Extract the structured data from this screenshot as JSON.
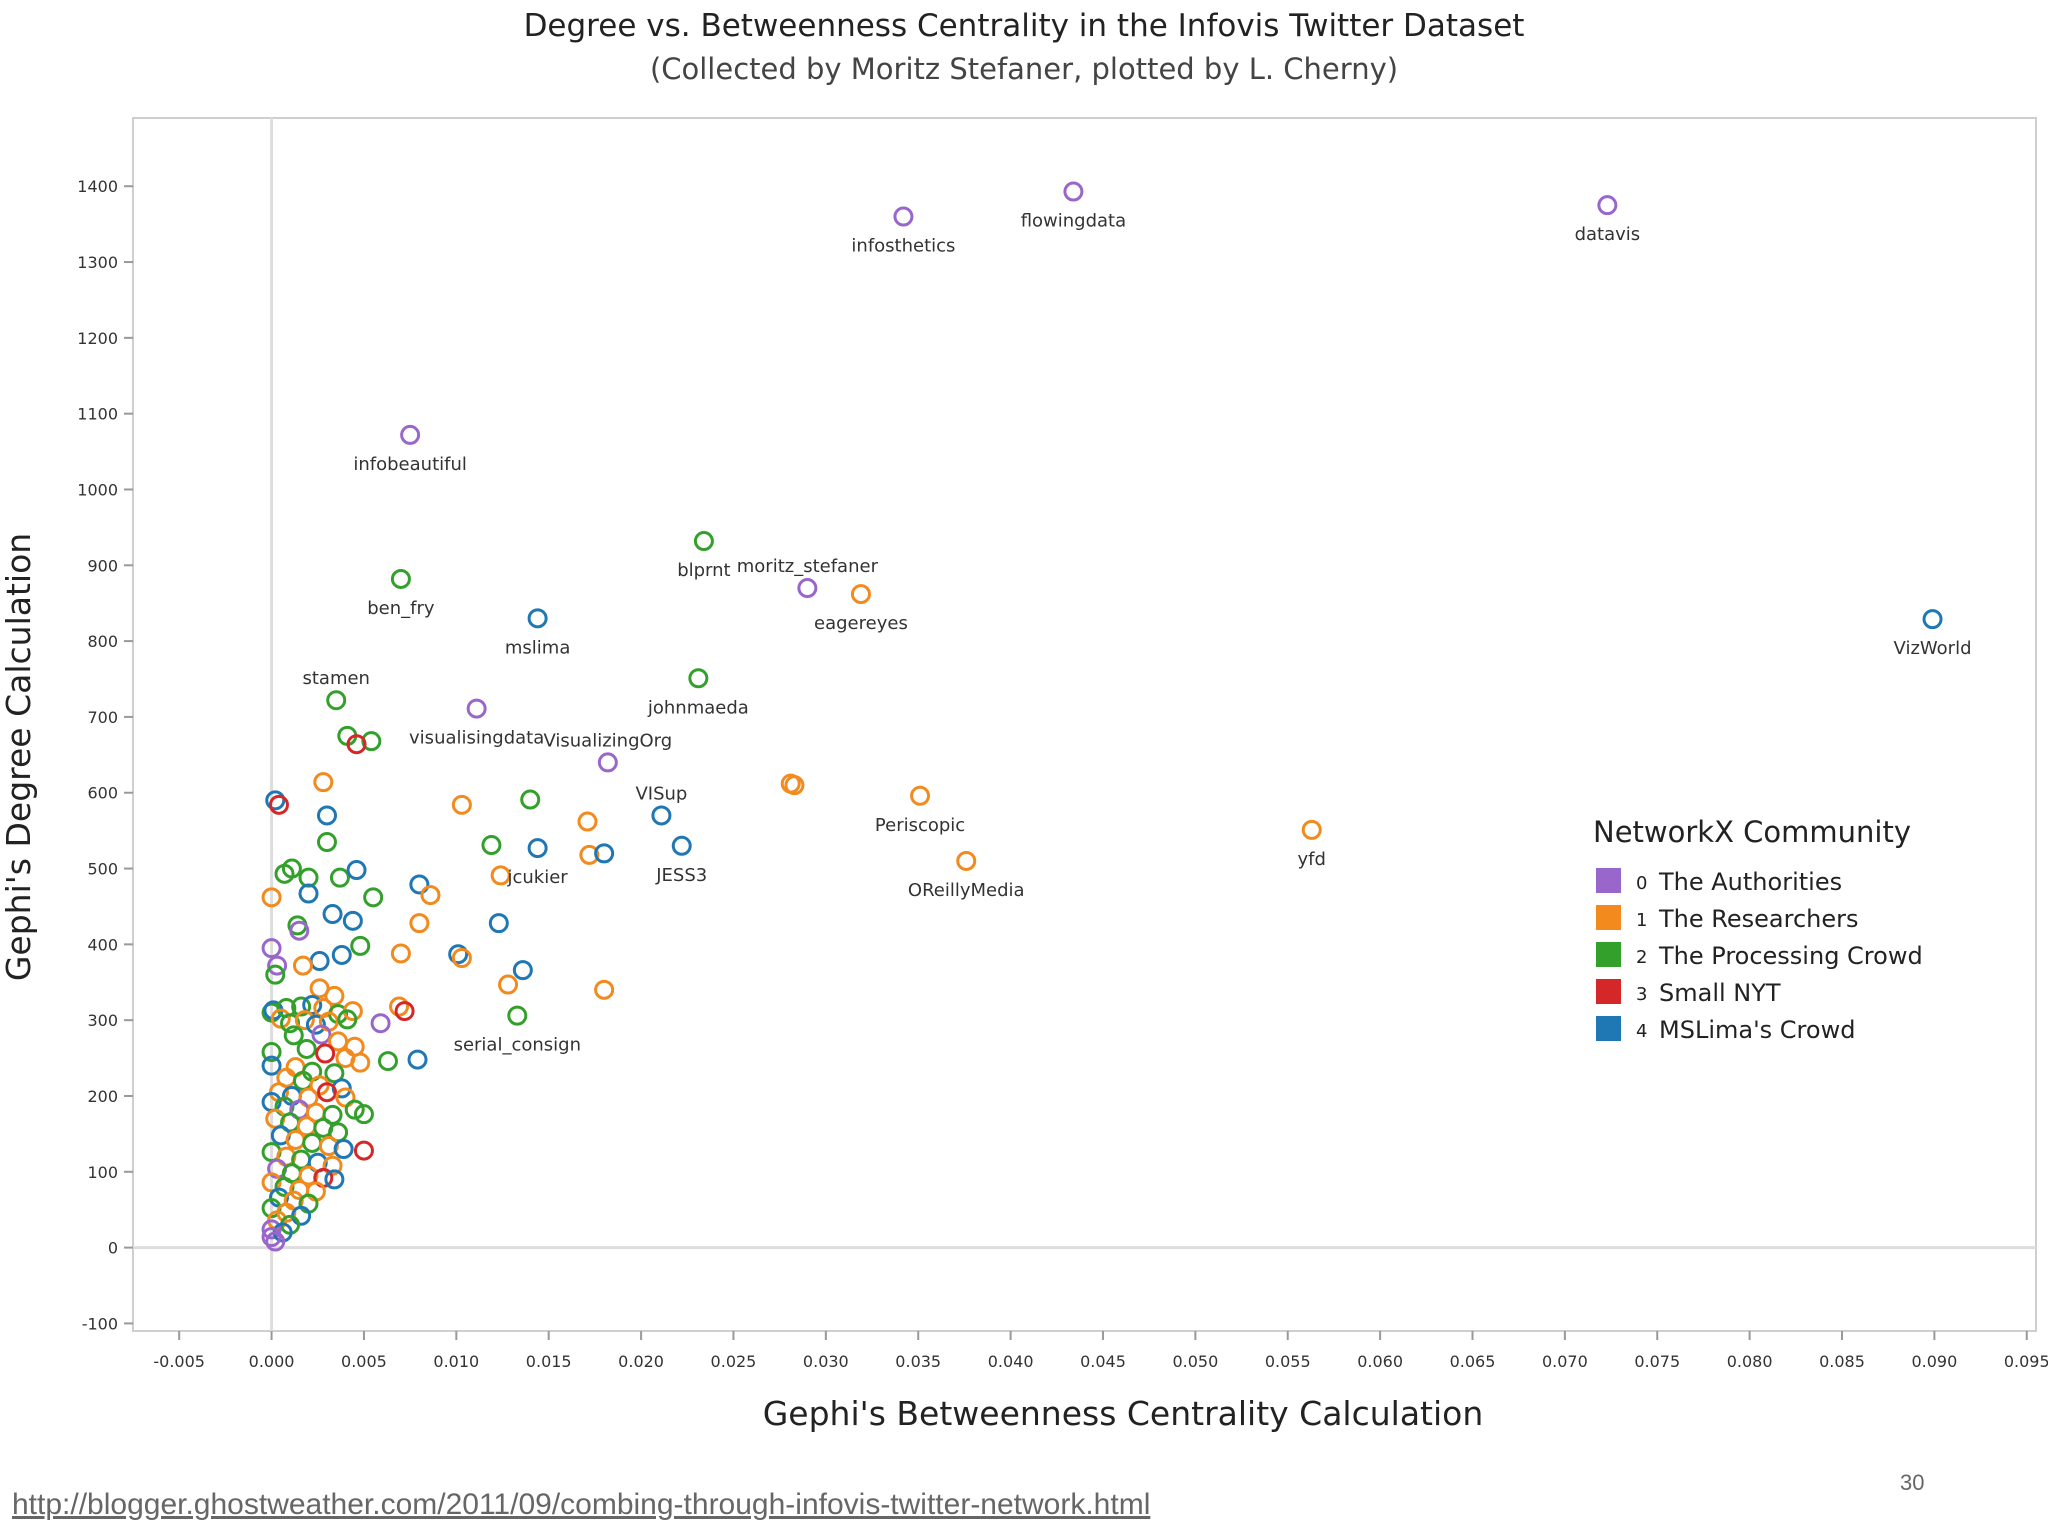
{
  "slide": {
    "page_number": "30",
    "source_url": "http://blogger.ghostweather.com/2011/09/combing-through-infovis-twitter-network.html"
  },
  "chart_data": {
    "type": "scatter",
    "title": "Degree vs. Betweenness Centrality in the Infovis Twitter Dataset",
    "subtitle": "(Collected by Moritz Stefaner, plotted by L. Cherny)",
    "xlabel": "Gephi's Betweenness Centrality Calculation",
    "ylabel": "Gephi's Degree Calculation",
    "xlim": [
      -0.0075,
      0.0955
    ],
    "ylim": [
      -110,
      1490
    ],
    "x_ticks": [
      -0.005,
      0.0,
      0.005,
      0.01,
      0.015,
      0.02,
      0.025,
      0.03,
      0.035,
      0.04,
      0.045,
      0.05,
      0.055,
      0.06,
      0.065,
      0.07,
      0.075,
      0.08,
      0.085,
      0.09,
      0.095
    ],
    "x_tick_labels": [
      "-0.005",
      "0.000",
      "0.005",
      "0.010",
      "0.015",
      "0.020",
      "0.025",
      "0.030",
      "0.035",
      "0.040",
      "0.045",
      "0.050",
      "0.055",
      "0.060",
      "0.065",
      "0.070",
      "0.075",
      "0.080",
      "0.085",
      "0.090",
      "0.095"
    ],
    "y_ticks": [
      -100,
      0,
      100,
      200,
      300,
      400,
      500,
      600,
      700,
      800,
      900,
      1000,
      1100,
      1200,
      1300,
      1400
    ],
    "y_tick_labels": [
      "-100",
      "0",
      "100",
      "200",
      "300",
      "400",
      "500",
      "600",
      "700",
      "800",
      "900",
      "1000",
      "1100",
      "1200",
      "1300",
      "1400"
    ],
    "grid": false,
    "reference_lines": {
      "x": 0,
      "y": 0
    },
    "marker": "open-circle",
    "legend": {
      "title": "NetworkX Community",
      "placement": "right",
      "entries": [
        {
          "code": "0",
          "name": "The Authorities",
          "color": "#9966cc"
        },
        {
          "code": "1",
          "name": "The Researchers",
          "color": "#f28a1e"
        },
        {
          "code": "2",
          "name": "The Processing Crowd",
          "color": "#33a02c"
        },
        {
          "code": "3",
          "name": "Small NYT",
          "color": "#d62728"
        },
        {
          "code": "4",
          "name": "MSLima's Crowd",
          "color": "#1f77b4"
        }
      ]
    },
    "labeled_points": [
      {
        "label": "infosthetics",
        "x": 0.0342,
        "y": 1360,
        "group": 0,
        "label_pos": "below"
      },
      {
        "label": "flowingdata",
        "x": 0.0434,
        "y": 1393,
        "group": 0,
        "label_pos": "below"
      },
      {
        "label": "datavis",
        "x": 0.0723,
        "y": 1375,
        "group": 0,
        "label_pos": "below"
      },
      {
        "label": "infobeautiful",
        "x": 0.0075,
        "y": 1072,
        "group": 0,
        "label_pos": "below"
      },
      {
        "label": "blprnt",
        "x": 0.0234,
        "y": 932,
        "group": 2,
        "label_pos": "below"
      },
      {
        "label": "moritz_stefaner",
        "x": 0.029,
        "y": 870,
        "group": 0,
        "label_pos": "above"
      },
      {
        "label": "eagereyes",
        "x": 0.0319,
        "y": 862,
        "group": 1,
        "label_pos": "below"
      },
      {
        "label": "ben_fry",
        "x": 0.007,
        "y": 882,
        "group": 2,
        "label_pos": "below"
      },
      {
        "label": "mslima",
        "x": 0.0144,
        "y": 830,
        "group": 4,
        "label_pos": "below"
      },
      {
        "label": "VizWorld",
        "x": 0.0899,
        "y": 829,
        "group": 4,
        "label_pos": "below"
      },
      {
        "label": "stamen",
        "x": 0.0035,
        "y": 722,
        "group": 2,
        "label_pos": "above"
      },
      {
        "label": "johnmaeda",
        "x": 0.0231,
        "y": 751,
        "group": 2,
        "label_pos": "below"
      },
      {
        "label": "visualisingdata",
        "x": 0.0111,
        "y": 711,
        "group": 0,
        "label_pos": "below"
      },
      {
        "label": "VisualizingOrg",
        "x": 0.0182,
        "y": 640,
        "group": 0,
        "label_pos": "above"
      },
      {
        "label": "VISup",
        "x": 0.0211,
        "y": 570,
        "group": 4,
        "label_pos": "above"
      },
      {
        "label": "Periscopic",
        "x": 0.0351,
        "y": 596,
        "group": 1,
        "label_pos": "below"
      },
      {
        "label": "yfd",
        "x": 0.0563,
        "y": 551,
        "group": 1,
        "label_pos": "below"
      },
      {
        "label": "JESS3",
        "x": 0.0222,
        "y": 530,
        "group": 4,
        "label_pos": "below"
      },
      {
        "label": "jcukier",
        "x": 0.0144,
        "y": 527,
        "group": 4,
        "label_pos": "below"
      },
      {
        "label": "OReillyMedia",
        "x": 0.0376,
        "y": 510,
        "group": 1,
        "label_pos": "below"
      },
      {
        "label": "serial_consign",
        "x": 0.0133,
        "y": 306,
        "group": 2,
        "label_pos": "below"
      }
    ],
    "points": [
      {
        "x": 0.0281,
        "y": 612,
        "group": 1
      },
      {
        "x": 0.0283,
        "y": 610,
        "group": 1
      },
      {
        "x": 0.0041,
        "y": 675,
        "group": 2
      },
      {
        "x": 0.0054,
        "y": 668,
        "group": 2
      },
      {
        "x": 0.0046,
        "y": 664,
        "group": 3
      },
      {
        "x": 0.0028,
        "y": 614,
        "group": 1
      },
      {
        "x": 0.0002,
        "y": 590,
        "group": 4
      },
      {
        "x": 0.0004,
        "y": 584,
        "group": 3
      },
      {
        "x": 0.003,
        "y": 570,
        "group": 4
      },
      {
        "x": 0.0103,
        "y": 584,
        "group": 1
      },
      {
        "x": 0.014,
        "y": 591,
        "group": 2
      },
      {
        "x": 0.0171,
        "y": 562,
        "group": 1
      },
      {
        "x": 0.0119,
        "y": 531,
        "group": 2
      },
      {
        "x": 0.003,
        "y": 535,
        "group": 2
      },
      {
        "x": 0.0172,
        "y": 518,
        "group": 1
      },
      {
        "x": 0.018,
        "y": 520,
        "group": 4
      },
      {
        "x": 0.0124,
        "y": 491,
        "group": 1
      },
      {
        "x": 0.0011,
        "y": 500,
        "group": 2
      },
      {
        "x": 0.0007,
        "y": 493,
        "group": 2
      },
      {
        "x": 0.002,
        "y": 488,
        "group": 2
      },
      {
        "x": 0.0037,
        "y": 488,
        "group": 2
      },
      {
        "x": 0.0046,
        "y": 498,
        "group": 4
      },
      {
        "x": 0.008,
        "y": 479,
        "group": 4
      },
      {
        "x": 0.0086,
        "y": 465,
        "group": 1
      },
      {
        "x": 0.0,
        "y": 462,
        "group": 1
      },
      {
        "x": 0.002,
        "y": 467,
        "group": 4
      },
      {
        "x": 0.0055,
        "y": 462,
        "group": 2
      },
      {
        "x": 0.0033,
        "y": 440,
        "group": 4
      },
      {
        "x": 0.0044,
        "y": 431,
        "group": 4
      },
      {
        "x": 0.0014,
        "y": 425,
        "group": 2
      },
      {
        "x": 0.0015,
        "y": 418,
        "group": 0
      },
      {
        "x": 0.008,
        "y": 428,
        "group": 1
      },
      {
        "x": 0.0123,
        "y": 428,
        "group": 4
      },
      {
        "x": 0.0,
        "y": 395,
        "group": 0
      },
      {
        "x": 0.0048,
        "y": 398,
        "group": 2
      },
      {
        "x": 0.007,
        "y": 388,
        "group": 1
      },
      {
        "x": 0.0101,
        "y": 387,
        "group": 4
      },
      {
        "x": 0.0103,
        "y": 382,
        "group": 1
      },
      {
        "x": 0.0038,
        "y": 386,
        "group": 4
      },
      {
        "x": 0.0026,
        "y": 378,
        "group": 4
      },
      {
        "x": 0.0017,
        "y": 372,
        "group": 1
      },
      {
        "x": 0.0003,
        "y": 372,
        "group": 0
      },
      {
        "x": 0.0002,
        "y": 360,
        "group": 2
      },
      {
        "x": 0.0136,
        "y": 366,
        "group": 4
      },
      {
        "x": 0.0128,
        "y": 347,
        "group": 1
      },
      {
        "x": 0.018,
        "y": 340,
        "group": 1
      },
      {
        "x": 0.0026,
        "y": 342,
        "group": 1
      },
      {
        "x": 0.0034,
        "y": 332,
        "group": 1
      },
      {
        "x": 0.0069,
        "y": 318,
        "group": 1
      },
      {
        "x": 0.0072,
        "y": 312,
        "group": 3
      },
      {
        "x": 0.0,
        "y": 310,
        "group": 2
      },
      {
        "x": 0.0001,
        "y": 313,
        "group": 4
      },
      {
        "x": 0.0008,
        "y": 316,
        "group": 2
      },
      {
        "x": 0.0016,
        "y": 318,
        "group": 2
      },
      {
        "x": 0.0022,
        "y": 320,
        "group": 4
      },
      {
        "x": 0.0028,
        "y": 316,
        "group": 1
      },
      {
        "x": 0.0036,
        "y": 308,
        "group": 2
      },
      {
        "x": 0.0044,
        "y": 312,
        "group": 1
      },
      {
        "x": 0.0059,
        "y": 296,
        "group": 0
      },
      {
        "x": 0.0005,
        "y": 302,
        "group": 1
      },
      {
        "x": 0.001,
        "y": 296,
        "group": 2
      },
      {
        "x": 0.0018,
        "y": 300,
        "group": 1
      },
      {
        "x": 0.0024,
        "y": 294,
        "group": 4
      },
      {
        "x": 0.0031,
        "y": 298,
        "group": 1
      },
      {
        "x": 0.0041,
        "y": 301,
        "group": 2
      },
      {
        "x": 0.0012,
        "y": 280,
        "group": 2
      },
      {
        "x": 0.0027,
        "y": 281,
        "group": 0
      },
      {
        "x": 0.0036,
        "y": 272,
        "group": 1
      },
      {
        "x": 0.0045,
        "y": 265,
        "group": 1
      },
      {
        "x": 0.0019,
        "y": 262,
        "group": 2
      },
      {
        "x": 0.0,
        "y": 258,
        "group": 2
      },
      {
        "x": 0.0029,
        "y": 256,
        "group": 3
      },
      {
        "x": 0.004,
        "y": 250,
        "group": 1
      },
      {
        "x": 0.0048,
        "y": 244,
        "group": 1
      },
      {
        "x": 0.0063,
        "y": 246,
        "group": 2
      },
      {
        "x": 0.0079,
        "y": 248,
        "group": 4
      },
      {
        "x": 0.0,
        "y": 240,
        "group": 4
      },
      {
        "x": 0.0013,
        "y": 238,
        "group": 1
      },
      {
        "x": 0.0022,
        "y": 232,
        "group": 2
      },
      {
        "x": 0.0034,
        "y": 230,
        "group": 2
      },
      {
        "x": 0.0008,
        "y": 224,
        "group": 1
      },
      {
        "x": 0.0017,
        "y": 220,
        "group": 2
      },
      {
        "x": 0.0026,
        "y": 214,
        "group": 1
      },
      {
        "x": 0.0038,
        "y": 210,
        "group": 4
      },
      {
        "x": 0.0004,
        "y": 205,
        "group": 1
      },
      {
        "x": 0.0011,
        "y": 200,
        "group": 4
      },
      {
        "x": 0.002,
        "y": 198,
        "group": 1
      },
      {
        "x": 0.003,
        "y": 205,
        "group": 3
      },
      {
        "x": 0.004,
        "y": 198,
        "group": 1
      },
      {
        "x": 0.0,
        "y": 192,
        "group": 4
      },
      {
        "x": 0.0007,
        "y": 186,
        "group": 2
      },
      {
        "x": 0.0015,
        "y": 182,
        "group": 0
      },
      {
        "x": 0.0024,
        "y": 178,
        "group": 1
      },
      {
        "x": 0.0033,
        "y": 175,
        "group": 2
      },
      {
        "x": 0.0045,
        "y": 182,
        "group": 2
      },
      {
        "x": 0.005,
        "y": 176,
        "group": 2
      },
      {
        "x": 0.0002,
        "y": 170,
        "group": 1
      },
      {
        "x": 0.001,
        "y": 165,
        "group": 2
      },
      {
        "x": 0.0019,
        "y": 160,
        "group": 1
      },
      {
        "x": 0.0028,
        "y": 158,
        "group": 2
      },
      {
        "x": 0.0036,
        "y": 152,
        "group": 2
      },
      {
        "x": 0.0005,
        "y": 148,
        "group": 4
      },
      {
        "x": 0.0013,
        "y": 142,
        "group": 1
      },
      {
        "x": 0.0022,
        "y": 138,
        "group": 2
      },
      {
        "x": 0.0031,
        "y": 134,
        "group": 1
      },
      {
        "x": 0.0039,
        "y": 130,
        "group": 4
      },
      {
        "x": 0.005,
        "y": 128,
        "group": 3
      },
      {
        "x": 0.0,
        "y": 126,
        "group": 2
      },
      {
        "x": 0.0008,
        "y": 120,
        "group": 1
      },
      {
        "x": 0.0016,
        "y": 116,
        "group": 2
      },
      {
        "x": 0.0025,
        "y": 112,
        "group": 4
      },
      {
        "x": 0.0033,
        "y": 108,
        "group": 1
      },
      {
        "x": 0.0003,
        "y": 104,
        "group": 0
      },
      {
        "x": 0.0011,
        "y": 98,
        "group": 2
      },
      {
        "x": 0.002,
        "y": 95,
        "group": 1
      },
      {
        "x": 0.0028,
        "y": 92,
        "group": 3
      },
      {
        "x": 0.0034,
        "y": 90,
        "group": 4
      },
      {
        "x": 0.0,
        "y": 86,
        "group": 1
      },
      {
        "x": 0.0007,
        "y": 80,
        "group": 2
      },
      {
        "x": 0.0015,
        "y": 76,
        "group": 1
      },
      {
        "x": 0.0024,
        "y": 74,
        "group": 1
      },
      {
        "x": 0.0004,
        "y": 66,
        "group": 4
      },
      {
        "x": 0.0012,
        "y": 62,
        "group": 1
      },
      {
        "x": 0.002,
        "y": 58,
        "group": 2
      },
      {
        "x": 0.0,
        "y": 52,
        "group": 2
      },
      {
        "x": 0.0008,
        "y": 46,
        "group": 1
      },
      {
        "x": 0.0016,
        "y": 42,
        "group": 4
      },
      {
        "x": 0.0003,
        "y": 36,
        "group": 1
      },
      {
        "x": 0.001,
        "y": 30,
        "group": 2
      },
      {
        "x": 0.0,
        "y": 24,
        "group": 0
      },
      {
        "x": 0.0006,
        "y": 20,
        "group": 4
      },
      {
        "x": 0.0,
        "y": 14,
        "group": 0
      },
      {
        "x": 0.0002,
        "y": 8,
        "group": 0
      }
    ]
  }
}
